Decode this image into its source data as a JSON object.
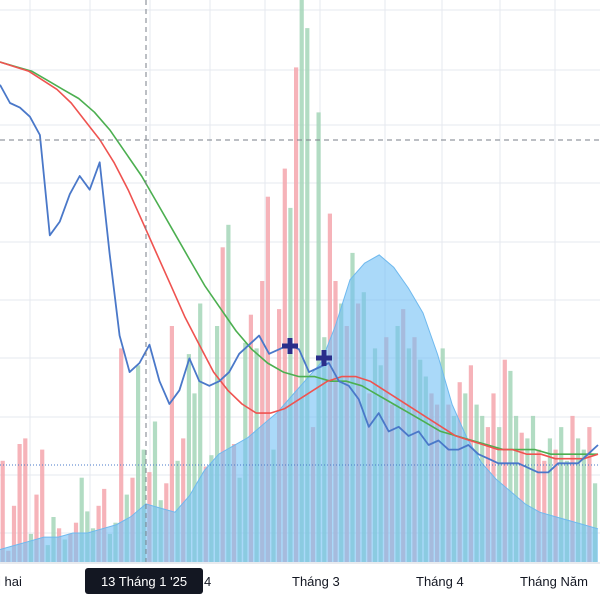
{
  "colors": {
    "up_volume": "#a5d6b8",
    "down_volume": "#f4a6ad",
    "area_fill": "#72c0f5",
    "area_line": "#6fb9ee",
    "price_line": "#4a78c9",
    "ma_short": "#ef5350",
    "ma_long": "#4caf50",
    "marker": "#2a2e8a",
    "grid": "#e6e9ef"
  },
  "crosshair": {
    "label": "13 Tháng 1 '25"
  },
  "chart_data": {
    "type": "line",
    "x_tick_labels": [
      "i hai",
      "4",
      "Tháng 3",
      "Tháng 4",
      "Tháng Năm"
    ],
    "grid": true,
    "series": [
      {
        "values": [
          95,
          91,
          90,
          88,
          84,
          62,
          65,
          71,
          75,
          72,
          78,
          58,
          40,
          32,
          34,
          38,
          30,
          25,
          28,
          35,
          30,
          29,
          30,
          32,
          36,
          38,
          40,
          36,
          37,
          38,
          37,
          32,
          33,
          34,
          30,
          29,
          26,
          20,
          23,
          19,
          20,
          18,
          19,
          16,
          17,
          15,
          15,
          16,
          14,
          13,
          12,
          12,
          12,
          11,
          10,
          10,
          12,
          12,
          12,
          14,
          16
        ]
      },
      {
        "values": [
          100,
          99,
          98,
          96,
          94,
          91,
          87,
          83,
          78,
          72,
          65,
          58,
          51,
          44,
          38,
          32,
          28,
          25,
          23,
          23,
          24,
          26,
          28,
          30,
          31,
          31,
          30,
          28,
          26,
          24,
          22,
          20,
          18,
          17,
          16,
          15,
          15,
          14,
          14,
          13,
          13,
          13,
          14
        ]
      },
      {
        "values": [
          100,
          99,
          98,
          96,
          94,
          92,
          89,
          85,
          80,
          75,
          69,
          63,
          57,
          51,
          46,
          41,
          37,
          34,
          32,
          31,
          31,
          30,
          30,
          29,
          27,
          25,
          23,
          21,
          19,
          18,
          17,
          16,
          15,
          15,
          15,
          14,
          14,
          14,
          14
        ]
      }
    ],
    "area_values": [
      3,
      4,
      5,
      6,
      6,
      7,
      7,
      8,
      9,
      11,
      14,
      13,
      12,
      16,
      22,
      26,
      28,
      30,
      33,
      36,
      40,
      44,
      48,
      57,
      68,
      72,
      74,
      71,
      66,
      60,
      50,
      38,
      30,
      24,
      20,
      17,
      14,
      12,
      11,
      10,
      9,
      8
    ],
    "volume_values": [
      18,
      2,
      10,
      21,
      22,
      5,
      12,
      20,
      3,
      8,
      6,
      4,
      5,
      7,
      15,
      9,
      6,
      10,
      13,
      5,
      7,
      38,
      12,
      15,
      35,
      20,
      16,
      25,
      11,
      14,
      42,
      18,
      22,
      37,
      30,
      46,
      17,
      19,
      42,
      56,
      60,
      21,
      15,
      39,
      44,
      38,
      50,
      65,
      20,
      45,
      70,
      63,
      88,
      100,
      95,
      24,
      80,
      40,
      62,
      50,
      46,
      42,
      55,
      46,
      48,
      30,
      38,
      35,
      40,
      28,
      42,
      45,
      38,
      40,
      36,
      33,
      30,
      28,
      38,
      28,
      26,
      32,
      30,
      35,
      28,
      26,
      24,
      30,
      24,
      36,
      34,
      26,
      23,
      22,
      26,
      20,
      18,
      22,
      20,
      24,
      18,
      26,
      22,
      20,
      24,
      14
    ],
    "volume_up": [
      0,
      0,
      0,
      0,
      0,
      1,
      0,
      0,
      1,
      1,
      0,
      1,
      0,
      0,
      1,
      1,
      1,
      0,
      0,
      1,
      1,
      0,
      1,
      0,
      1,
      1,
      0,
      1,
      1,
      0,
      0,
      1,
      0,
      1,
      1,
      1,
      0,
      1,
      1,
      0,
      1,
      0,
      1,
      1,
      0,
      1,
      0,
      0,
      1,
      0,
      0,
      1,
      0,
      1,
      1,
      0,
      1,
      1,
      0,
      0,
      1,
      0,
      1,
      0,
      1,
      0,
      1,
      1,
      0,
      0,
      1,
      0,
      1,
      0,
      1,
      1,
      0,
      0,
      1,
      0,
      1,
      0,
      1,
      0,
      1,
      1,
      0,
      0,
      1,
      0,
      1,
      1,
      0,
      1,
      1,
      0,
      0,
      1,
      0,
      1,
      1,
      0,
      1,
      1,
      0,
      1
    ]
  }
}
